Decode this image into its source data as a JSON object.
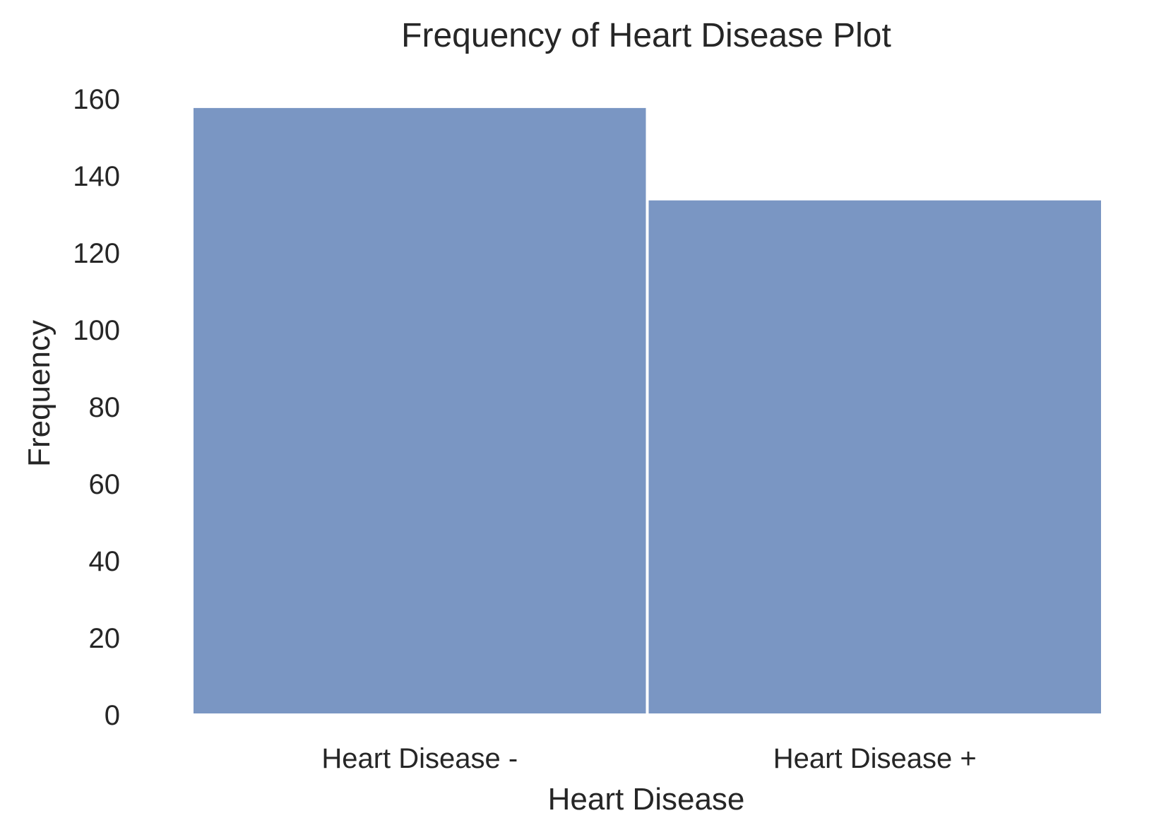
{
  "chart_data": {
    "type": "bar",
    "title": "Frequency of Heart Disease Plot",
    "xlabel": "Heart Disease",
    "ylabel": "Frequency",
    "categories": [
      "Heart Disease -",
      "Heart Disease +"
    ],
    "values": [
      158,
      134
    ],
    "ylim": [
      0,
      160
    ],
    "yticks": [
      0,
      20,
      40,
      60,
      80,
      100,
      120,
      140,
      160
    ],
    "grid": false,
    "bar_color": "#7A96C3",
    "text_color": "#262626",
    "background_color": "#FFFFFF"
  }
}
